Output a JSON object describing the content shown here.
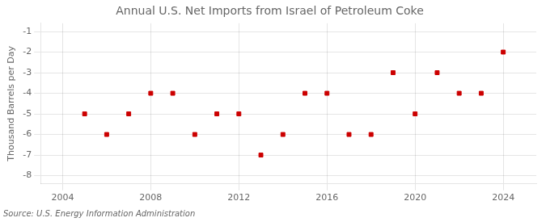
{
  "chart_data": {
    "type": "scatter",
    "title": "Annual U.S. Net Imports from Israel of Petroleum Coke",
    "ylabel": "Thousand Barrels per Day",
    "annotation": "Source: U.S. Energy Information Administration",
    "x": [
      2005,
      2006,
      2007,
      2008,
      2009,
      2010,
      2011,
      2012,
      2013,
      2014,
      2015,
      2016,
      2017,
      2018,
      2019,
      2020,
      2021,
      2022,
      2023,
      2024
    ],
    "values": [
      -5,
      -6,
      -5,
      -4,
      -4,
      -6,
      -5,
      -5,
      -7,
      -6,
      -4,
      -4,
      -6,
      -6,
      -3,
      -5,
      -3,
      -4,
      -4,
      -2
    ],
    "color": "#cc0000",
    "marker": "square",
    "xlim": [
      2003.0,
      2025.5
    ],
    "ylim": [
      -8.4,
      -0.6
    ],
    "xticks": [
      2004,
      2008,
      2012,
      2016,
      2020,
      2024
    ],
    "yticks": [
      -8,
      -7,
      -6,
      -5,
      -4,
      -3,
      -2,
      -1
    ],
    "grid": true
  }
}
